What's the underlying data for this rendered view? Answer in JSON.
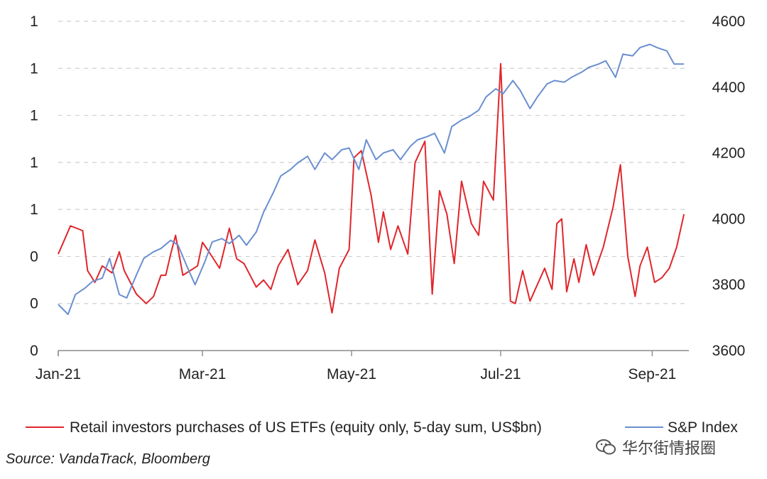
{
  "chart_data": {
    "type": "line",
    "x_ticks": [
      "Jan-21",
      "Mar-21",
      "May-21",
      "Jul-21",
      "Sep-21"
    ],
    "y_left_ticks": [
      "0",
      "0",
      "0",
      "1",
      "1",
      "1",
      "1",
      "1"
    ],
    "y_right_ticks": [
      "3600",
      "3800",
      "4000",
      "4200",
      "4400",
      "4600"
    ],
    "y_left_range": [
      0,
      1.4
    ],
    "y_right_range": [
      3600,
      4600
    ],
    "grid": true,
    "legend_position": "bottom",
    "series": [
      {
        "name": "Retail investors purchases of US ETFs (equity only, 5-day sum, US$bn)",
        "axis": "left",
        "color": "#e0262b",
        "x": [
          "2021-01-01",
          "2021-01-06",
          "2021-01-11",
          "2021-01-13",
          "2021-01-16",
          "2021-01-19",
          "2021-01-23",
          "2021-01-26",
          "2021-01-28",
          "2021-02-02",
          "2021-02-06",
          "2021-02-09",
          "2021-02-12",
          "2021-02-14",
          "2021-02-16",
          "2021-02-18",
          "2021-02-21",
          "2021-02-27",
          "2021-03-01",
          "2021-03-03",
          "2021-03-08",
          "2021-03-12",
          "2021-03-15",
          "2021-03-18",
          "2021-03-23",
          "2021-03-26",
          "2021-03-29",
          "2021-04-01",
          "2021-04-05",
          "2021-04-09",
          "2021-04-13",
          "2021-04-16",
          "2021-04-20",
          "2021-04-23",
          "2021-04-26",
          "2021-04-30",
          "2021-05-02",
          "2021-05-05",
          "2021-05-09",
          "2021-05-12",
          "2021-05-14",
          "2021-05-17",
          "2021-05-20",
          "2021-05-24",
          "2021-05-27",
          "2021-05-31",
          "2021-06-03",
          "2021-06-06",
          "2021-06-09",
          "2021-06-12",
          "2021-06-15",
          "2021-06-19",
          "2021-06-22",
          "2021-06-24",
          "2021-06-28",
          "2021-07-01",
          "2021-07-05",
          "2021-07-07",
          "2021-07-10",
          "2021-07-13",
          "2021-07-16",
          "2021-07-19",
          "2021-07-22",
          "2021-07-24",
          "2021-07-26",
          "2021-07-28",
          "2021-07-31",
          "2021-08-02",
          "2021-08-05",
          "2021-08-08",
          "2021-08-12",
          "2021-08-16",
          "2021-08-19",
          "2021-08-22",
          "2021-08-25",
          "2021-08-27",
          "2021-08-30",
          "2021-09-02",
          "2021-09-05",
          "2021-09-08",
          "2021-09-11",
          "2021-09-14"
        ],
        "values": [
          0.41,
          0.53,
          0.51,
          0.34,
          0.29,
          0.36,
          0.33,
          0.42,
          0.34,
          0.24,
          0.2,
          0.23,
          0.32,
          0.32,
          0.41,
          0.49,
          0.32,
          0.36,
          0.46,
          0.43,
          0.35,
          0.52,
          0.39,
          0.37,
          0.27,
          0.3,
          0.26,
          0.36,
          0.43,
          0.28,
          0.34,
          0.47,
          0.33,
          0.16,
          0.35,
          0.43,
          0.82,
          0.85,
          0.66,
          0.46,
          0.59,
          0.43,
          0.53,
          0.41,
          0.8,
          0.89,
          0.24,
          0.68,
          0.58,
          0.37,
          0.72,
          0.54,
          0.49,
          0.72,
          0.64,
          1.22,
          0.21,
          0.2,
          0.34,
          0.21,
          0.28,
          0.35,
          0.26,
          0.54,
          0.56,
          0.25,
          0.39,
          0.29,
          0.45,
          0.32,
          0.44,
          0.61,
          0.79,
          0.4,
          0.23,
          0.36,
          0.44,
          0.29,
          0.31,
          0.35,
          0.44,
          0.58
        ]
      },
      {
        "name": "S&P Index",
        "axis": "right",
        "color": "#6a8fd0",
        "x": [
          "2021-01-01",
          "2021-01-05",
          "2021-01-08",
          "2021-01-12",
          "2021-01-15",
          "2021-01-19",
          "2021-01-22",
          "2021-01-26",
          "2021-01-29",
          "2021-02-02",
          "2021-02-05",
          "2021-02-09",
          "2021-02-12",
          "2021-02-16",
          "2021-02-19",
          "2021-02-23",
          "2021-02-26",
          "2021-03-02",
          "2021-03-05",
          "2021-03-09",
          "2021-03-12",
          "2021-03-16",
          "2021-03-19",
          "2021-03-23",
          "2021-03-26",
          "2021-03-30",
          "2021-04-02",
          "2021-04-06",
          "2021-04-09",
          "2021-04-13",
          "2021-04-16",
          "2021-04-20",
          "2021-04-23",
          "2021-04-27",
          "2021-04-30",
          "2021-05-04",
          "2021-05-07",
          "2021-05-11",
          "2021-05-14",
          "2021-05-18",
          "2021-05-21",
          "2021-05-25",
          "2021-05-28",
          "2021-06-01",
          "2021-06-04",
          "2021-06-08",
          "2021-06-11",
          "2021-06-15",
          "2021-06-18",
          "2021-06-22",
          "2021-06-25",
          "2021-06-29",
          "2021-07-02",
          "2021-07-06",
          "2021-07-09",
          "2021-07-13",
          "2021-07-16",
          "2021-07-20",
          "2021-07-23",
          "2021-07-27",
          "2021-07-30",
          "2021-08-03",
          "2021-08-06",
          "2021-08-10",
          "2021-08-13",
          "2021-08-17",
          "2021-08-20",
          "2021-08-24",
          "2021-08-27",
          "2021-08-31",
          "2021-09-03",
          "2021-09-07",
          "2021-09-10",
          "2021-09-14"
        ],
        "values": [
          3740,
          3710,
          3770,
          3790,
          3810,
          3820,
          3880,
          3770,
          3760,
          3830,
          3880,
          3900,
          3910,
          3935,
          3920,
          3850,
          3800,
          3870,
          3930,
          3940,
          3925,
          3950,
          3920,
          3960,
          4020,
          4080,
          4130,
          4150,
          4170,
          4190,
          4150,
          4200,
          4180,
          4210,
          4215,
          4150,
          4240,
          4180,
          4200,
          4210,
          4180,
          4220,
          4240,
          4250,
          4260,
          4200,
          4280,
          4300,
          4310,
          4330,
          4370,
          4395,
          4380,
          4420,
          4390,
          4335,
          4370,
          4410,
          4420,
          4415,
          4430,
          4445,
          4460,
          4470,
          4480,
          4430,
          4500,
          4495,
          4520,
          4530,
          4520,
          4510,
          4470,
          4470
        ]
      }
    ]
  },
  "legend": {
    "series_1": "Retail investors purchases of US ETFs (equity only, 5-day sum, US$bn)",
    "series_2": "S&P Index"
  },
  "source": "Source: VandaTrack, Bloomberg",
  "watermark": {
    "text": "华尔街情报圈",
    "icon": "wechat-icon"
  }
}
